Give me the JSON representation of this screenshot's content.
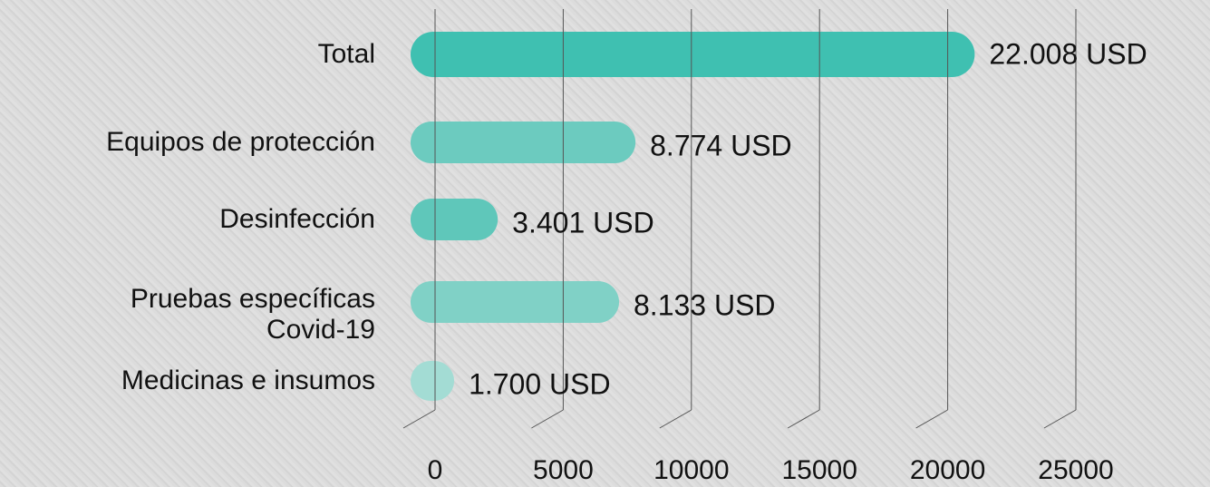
{
  "chart_data": {
    "type": "bar",
    "orientation": "horizontal",
    "categories": [
      "Total",
      "Equipos de protección",
      "Desinfección",
      "Pruebas específicas\nCovid-19",
      "Medicinas e insumos"
    ],
    "values": [
      22008,
      8774,
      3401,
      8133,
      1700
    ],
    "value_labels": [
      "22.008 USD",
      "8.774 USD",
      "3.401 USD",
      "8.133 USD",
      "1.700 USD"
    ],
    "colors": [
      "#3fc0b1",
      "#6ccbbf",
      "#5fc7ba",
      "#80d1c6",
      "#a3dcd4"
    ],
    "xlim": [
      0,
      25000
    ],
    "xticks": [
      0,
      5000,
      10000,
      15000,
      20000,
      25000
    ],
    "grid": true
  }
}
